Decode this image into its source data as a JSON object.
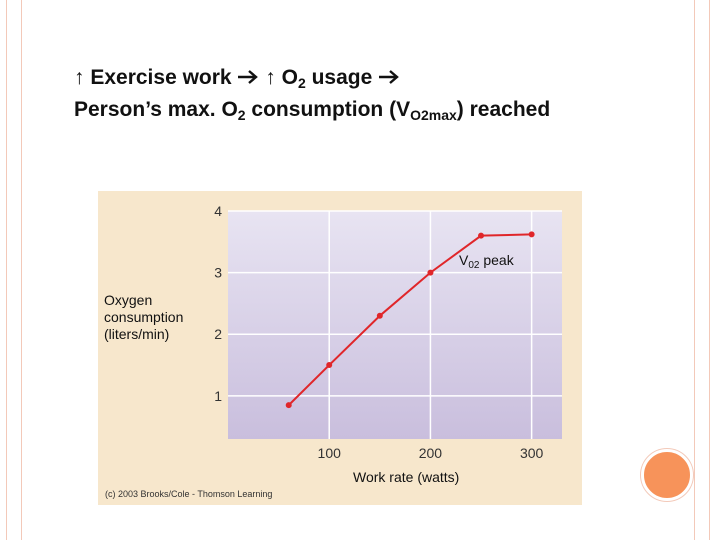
{
  "heading": {
    "line1": {
      "arrow_up_1": "↑",
      "text_a": " Exercise work ",
      "arrow_right_1": "",
      "arrow_up_2": " ↑",
      "text_b": " O",
      "sub_b": "2",
      "text_c": " usage ",
      "arrow_right_2": ""
    },
    "line2": {
      "text_a": "Person’s max. O",
      "sub_a": "2",
      "text_b": " consumption (V",
      "sub_b": "O2max",
      "text_c": ") reached"
    }
  },
  "colors": {
    "series": "#e0262a",
    "plot_top": "#e8e4f2",
    "plot_bottom": "#c9bedd",
    "panel": "#f7e7cc",
    "accent_circle": "#f7935a",
    "frame": "#f3c9b9"
  },
  "chart_data": {
    "type": "line",
    "ylabel_lines": [
      "Oxygen",
      "consumption",
      "(liters/min)"
    ],
    "xlabel": "Work rate (watts)",
    "xticks": [
      100,
      200,
      300
    ],
    "yticks": [
      1,
      2,
      3,
      4
    ],
    "xlim": [
      0,
      330
    ],
    "ylim": [
      0.3,
      4.0
    ],
    "grid": true,
    "series": [
      {
        "x": [
          60,
          100,
          150,
          200,
          250,
          300
        ],
        "y": [
          0.85,
          1.5,
          2.3,
          3.0,
          3.6,
          3.62
        ]
      }
    ],
    "annotation": {
      "text": "V",
      "sub": "02",
      "text_after": " peak"
    },
    "copyright": "(c) 2003 Brooks/Cole - Thomson Learning"
  }
}
